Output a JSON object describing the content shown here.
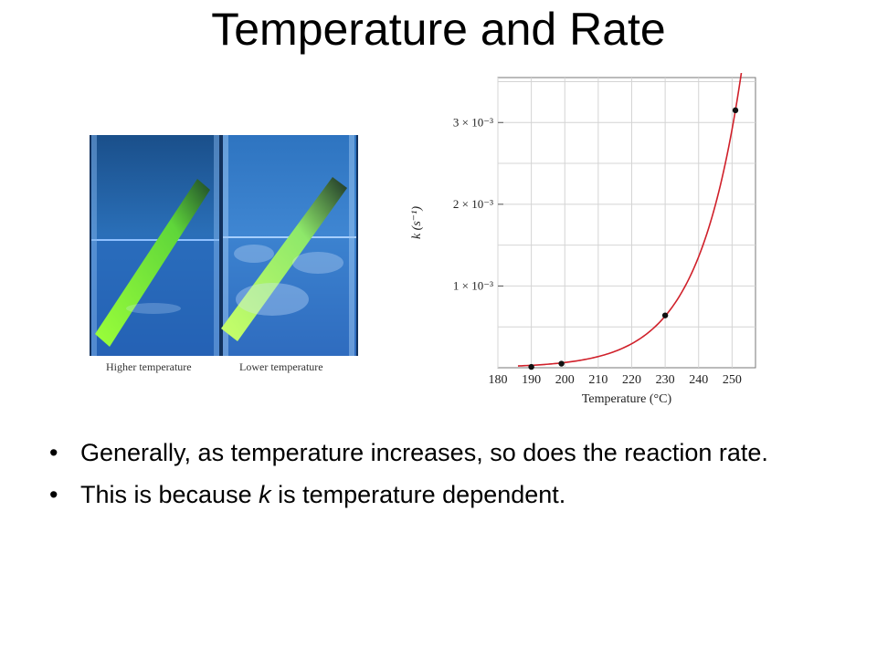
{
  "slide": {
    "title": "Temperature and Rate"
  },
  "figure": {
    "caption_left": "Higher temperature",
    "caption_right": "Lower temperature"
  },
  "bullets": {
    "b1": "Generally, as temperature increases, so does the reaction rate.",
    "b2_pre": "This is because ",
    "b2_var": "k",
    "b2_post": " is temperature dependent."
  },
  "chart_data": {
    "type": "scatter",
    "xlabel": "Temperature (°C)",
    "ylabel": "k (s⁻¹)",
    "x_ticks": [
      180,
      190,
      200,
      210,
      220,
      230,
      240,
      250
    ],
    "y_ticks": [
      {
        "value": 0.001,
        "label": "1 × 10⁻³"
      },
      {
        "value": 0.002,
        "label": "2 × 10⁻³"
      },
      {
        "value": 0.003,
        "label": "3 × 10⁻³"
      }
    ],
    "xlim": [
      180,
      257
    ],
    "ylim": [
      0,
      0.00355
    ],
    "points": [
      {
        "x": 190,
        "y": 1e-05
      },
      {
        "x": 199,
        "y": 5e-05
      },
      {
        "x": 230,
        "y": 0.00064
      },
      {
        "x": 251,
        "y": 0.00315
      }
    ],
    "curve_color": "#d0202a",
    "point_color": "#111111",
    "grid": true
  }
}
